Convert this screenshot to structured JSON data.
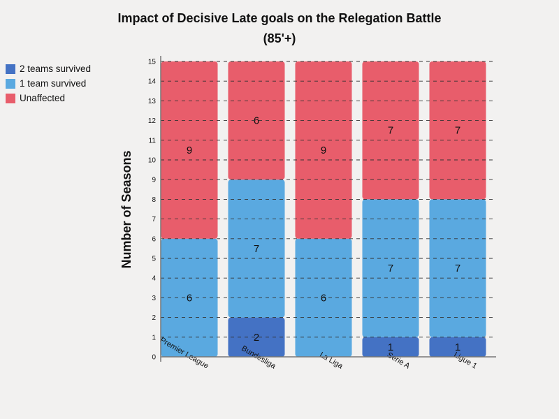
{
  "chart_data": {
    "type": "bar",
    "stacked": true,
    "title": "Impact of Decisive Late goals on the Relegation Battle",
    "subtitle": "(85'+)",
    "xlabel": "",
    "ylabel": "Number of Seasons",
    "ylim": [
      0,
      15
    ],
    "yticks": [
      "0",
      "1",
      "2",
      "3",
      "4",
      "5",
      "6",
      "7",
      "8",
      "9",
      "10",
      "11",
      "12",
      "13",
      "14",
      "15"
    ],
    "grid": "horizontal dashed",
    "legend_position": "top-left",
    "categories": [
      "Premier League",
      "Bundesliga",
      "La Liga",
      "Serie A",
      "Ligue 1"
    ],
    "series": [
      {
        "name": "2 teams survived",
        "color": "#4472c4",
        "values": [
          0,
          2,
          0,
          1,
          1
        ]
      },
      {
        "name": "1 team survived",
        "color": "#5aa9e0",
        "values": [
          6,
          7,
          6,
          7,
          7
        ]
      },
      {
        "name": "Unaffected",
        "color": "#e85d6b",
        "values": [
          9,
          6,
          9,
          7,
          7
        ]
      }
    ]
  }
}
